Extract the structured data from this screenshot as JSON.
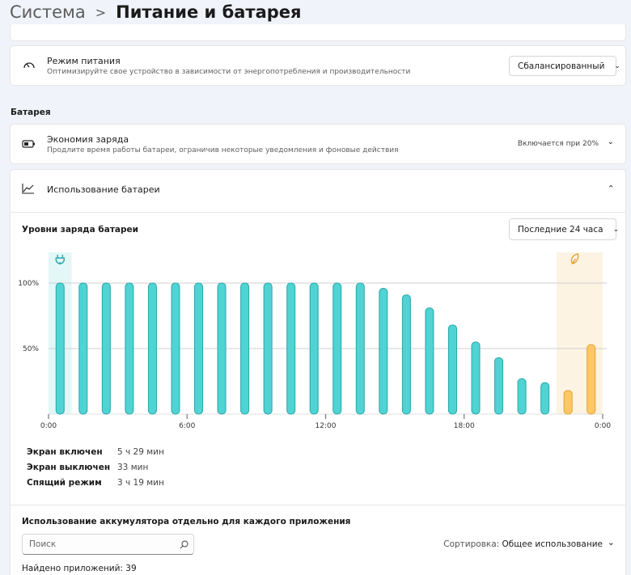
{
  "header": {
    "parent": "Система",
    "title": "Питание и батарея"
  },
  "power_mode": {
    "title": "Режим питания",
    "description": "Оптимизируйте свое устройство в зависимости от энергопотребления и производительности",
    "value": "Сбалансированный"
  },
  "battery_section": "Батарея",
  "battery_saver": {
    "title": "Экономия заряда",
    "description": "Продлите время работы батареи, ограничив некоторые уведомления и фоновые действия",
    "value": "Включается при 20%"
  },
  "battery_usage": {
    "title": "Использование батареи"
  },
  "chart_data": {
    "type": "bar",
    "title": "Уровни заряда батареи",
    "range_selector": "Последние 24 часа",
    "x": [
      0,
      1,
      2,
      3,
      4,
      5,
      6,
      7,
      8,
      9,
      10,
      11,
      12,
      13,
      14,
      15,
      16,
      17,
      18,
      19,
      20,
      21,
      22,
      23
    ],
    "values": [
      100,
      100,
      100,
      100,
      100,
      100,
      100,
      100,
      100,
      100,
      100,
      100,
      100,
      100,
      96,
      91,
      81,
      68,
      55,
      43,
      27,
      24,
      18,
      53
    ],
    "colors": [
      "#4fd3d3",
      "#4fd3d3",
      "#4fd3d3",
      "#4fd3d3",
      "#4fd3d3",
      "#4fd3d3",
      "#4fd3d3",
      "#4fd3d3",
      "#4fd3d3",
      "#4fd3d3",
      "#4fd3d3",
      "#4fd3d3",
      "#4fd3d3",
      "#4fd3d3",
      "#4fd3d3",
      "#4fd3d3",
      "#4fd3d3",
      "#4fd3d3",
      "#4fd3d3",
      "#4fd3d3",
      "#4fd3d3",
      "#4fd3d3",
      "#ffc864",
      "#ffc864"
    ],
    "bands": [
      {
        "x": [
          0,
          1
        ],
        "color": "#e3f7f7"
      },
      {
        "x": [
          22,
          24
        ],
        "color": "#fdf3e3"
      }
    ],
    "xlim": [
      0,
      24
    ],
    "xticks": [
      {
        "value": 0,
        "label": "0:00"
      },
      {
        "value": 6,
        "label": "6:00"
      },
      {
        "value": 12,
        "label": "12:00"
      },
      {
        "value": 18,
        "label": "18:00"
      },
      {
        "value": 24,
        "label": "0:00"
      }
    ],
    "ylim": [
      0,
      100
    ],
    "yticks": [
      {
        "value": 50,
        "label": "50%"
      },
      {
        "value": 100,
        "label": "100%"
      }
    ],
    "grid": true
  },
  "stats": [
    {
      "label": "Экран включен",
      "value": "5 ч 29 мин"
    },
    {
      "label": "Экран выключен",
      "value": "33 мин"
    },
    {
      "label": "Спящий режим",
      "value": "3 ч 19 мин"
    }
  ],
  "apps": {
    "title": "Использование аккумулятора отдельно для каждого приложения",
    "search_placeholder": "Поиск",
    "sort_label": "Сортировка:",
    "sort_value": "Общее использование",
    "found": "Найдено приложений: 39"
  }
}
